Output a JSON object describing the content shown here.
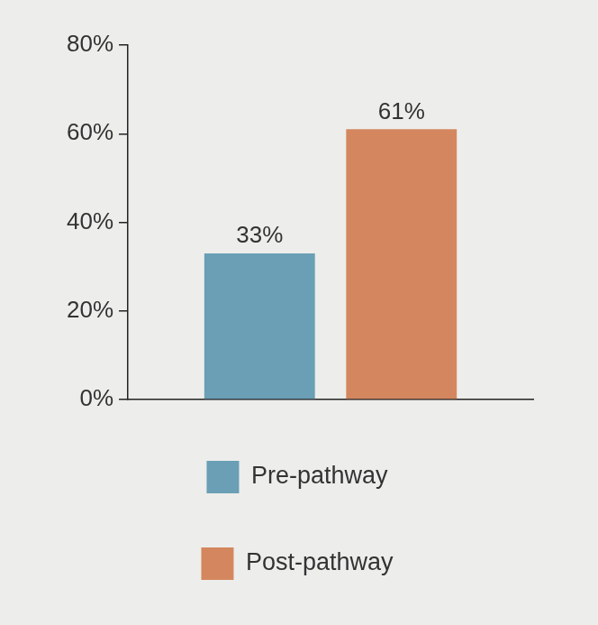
{
  "chart_data": {
    "type": "bar",
    "categories": [
      null
    ],
    "series": [
      {
        "name": "Pre-pathway",
        "color": "#6a9fb5",
        "values": [
          33
        ],
        "value_labels": [
          "33%"
        ]
      },
      {
        "name": "Post-pathway",
        "color": "#d4875e",
        "values": [
          61
        ],
        "value_labels": [
          "61%"
        ]
      }
    ],
    "ylim": [
      0,
      80
    ],
    "yticks": [
      {
        "value": 0,
        "label": "0%"
      },
      {
        "value": 20,
        "label": "20%"
      },
      {
        "value": 40,
        "label": "40%"
      },
      {
        "value": 60,
        "label": "60%"
      },
      {
        "value": 80,
        "label": "80%"
      }
    ],
    "grid": false,
    "legend": "bottom",
    "data_labels": true,
    "tick_labels": "y"
  }
}
